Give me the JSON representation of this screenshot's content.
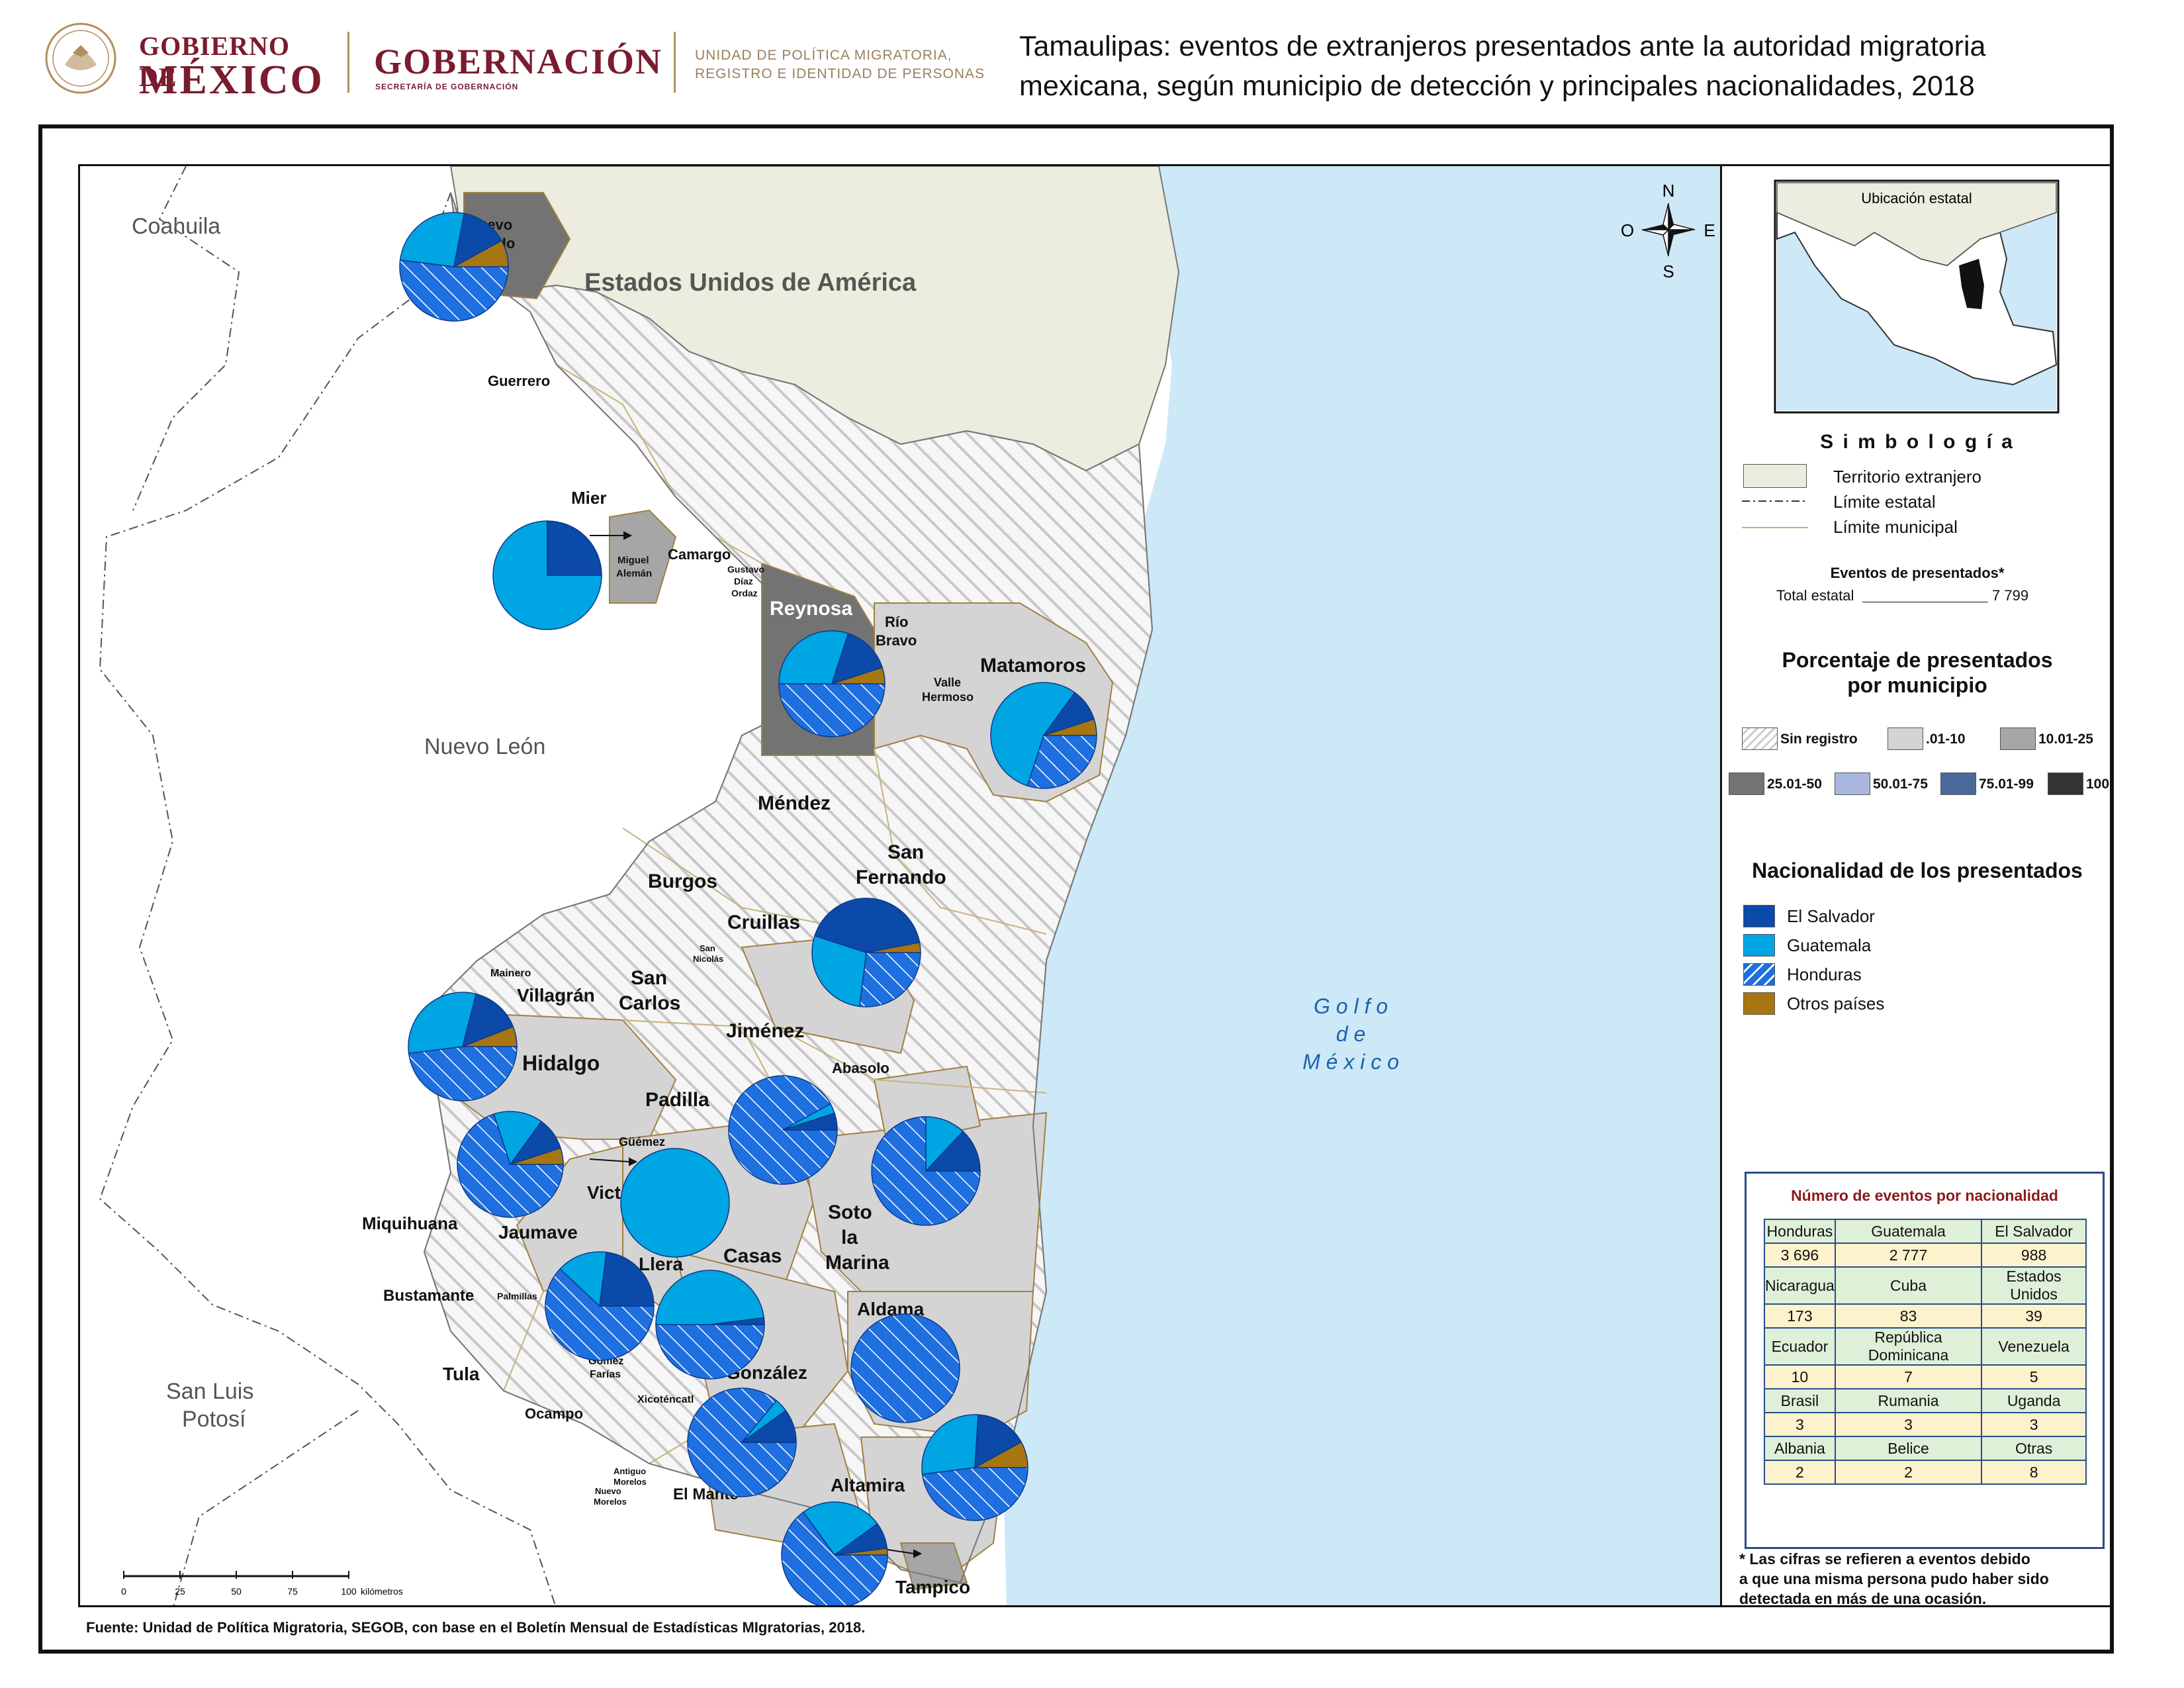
{
  "header": {
    "gob_line1": "GOBIERNO DE",
    "gob_line2": "MÉXICO",
    "gobernacion": "GOBERNACIÓN",
    "gobernacion_sub": "SECRETARÍA DE GOBERNACIÓN",
    "unit_line1": "UNIDAD DE POLÍTICA MIGRATORIA,",
    "unit_line2": "REGISTRO E IDENTIDAD DE PERSONAS",
    "title_line1": "Tamaulipas: eventos de extranjeros presentados ante la autoridad migratoria",
    "title_line2": "mexicana, según municipio de detección y principales nacionalidades, 2018"
  },
  "map": {
    "regions": {
      "coahuila": "Coahuila",
      "usa": "Estados Unidos de América",
      "nuevo_leon": "Nuevo León",
      "slp_1": "San Luis",
      "slp_2": "Potosí",
      "gulf_1": "G o l f o",
      "gulf_2": "d e",
      "gulf_3": "M é x i c o"
    },
    "municipalities": {
      "nuevo_laredo_1": "Nuevo",
      "nuevo_laredo_2": "Laredo",
      "guerrero": "Guerrero",
      "mier": "Mier",
      "miguel_aleman_1": "Miguel",
      "miguel_aleman_2": "Alemán",
      "camargo": "Camargo",
      "gustavo_1": "Gustavo",
      "gustavo_2": "Díaz",
      "gustavo_3": "Ordaz",
      "reynosa": "Reynosa",
      "rio_bravo_1": "Río",
      "rio_bravo_2": "Bravo",
      "valle_hermoso_1": "Valle",
      "valle_hermoso_2": "Hermoso",
      "matamoros": "Matamoros",
      "mendez": "Méndez",
      "san_fernando_1": "San",
      "san_fernando_2": "Fernando",
      "burgos": "Burgos",
      "cruillas": "Cruillas",
      "san_nicolas_1": "San",
      "san_nicolas_2": "Nicolás",
      "mainero": "Mainero",
      "villagran": "Villagrán",
      "san_carlos_1": "San",
      "san_carlos_2": "Carlos",
      "jimenez": "Jiménez",
      "abasolo": "Abasolo",
      "hidalgo": "Hidalgo",
      "padilla": "Padilla",
      "guemez": "Güémez",
      "victoria": "Victoria",
      "soto_la_marina_1": "Soto",
      "soto_la_marina_2": "la",
      "soto_la_marina_3": "Marina",
      "miquihuana": "Miquihuana",
      "jaumave": "Jaumave",
      "llera": "Llera",
      "casas": "Casas",
      "bustamante": "Bustamante",
      "palmillas": "Palmillas",
      "aldama": "Aldama",
      "tula": "Tula",
      "gomez_farias_1": "Gómez",
      "gomez_farias_2": "Farías",
      "xicotencatl": "Xicoténcatl",
      "gonzalez": "González",
      "ocampo": "Ocampo",
      "antiguo_morelos_1": "Antiguo",
      "antiguo_morelos_2": "Morelos",
      "nuevo_morelos_1": "Nuevo",
      "nuevo_morelos_2": "Morelos",
      "el_mante": "El Mante",
      "altamira": "Altamira",
      "tampico": "Tampico"
    },
    "compass": {
      "n": "N",
      "s": "S",
      "e": "E",
      "w": "O"
    },
    "scale": {
      "ticks": [
        "0",
        "25",
        "50",
        "75",
        "100"
      ],
      "unit": "kilómetros"
    }
  },
  "legend": {
    "inset_title": "Ubicación estatal",
    "symbology_title": "S i m b o l o g í a",
    "territorio": "Territorio extranjero",
    "limite_estatal": "Límite estatal",
    "limite_municipal": "Límite municipal",
    "events_title": "Eventos de presentados*",
    "total_label": "Total estatal",
    "total_value": "7 799",
    "pct_title_1": "Porcentaje de presentados",
    "pct_title_2": "por municipio",
    "classes": [
      {
        "label": "Sin registro",
        "color": "#ffffff"
      },
      {
        "label": ".01-10",
        "color": "#d4d4d4"
      },
      {
        "label": "10.01-25",
        "color": "#a6a6a6"
      },
      {
        "label": "25.01-50",
        "color": "#737373"
      },
      {
        "label": "50.01-75",
        "color": "#a9b7df"
      },
      {
        "label": "75.01-99",
        "color": "#4a6a9c"
      },
      {
        "label": "100",
        "color": "#333333"
      }
    ],
    "nat_title": "Nacionalidad de los presentados",
    "nationalities": [
      {
        "label": "El Salvador",
        "color": "#0b4aa8"
      },
      {
        "label": "Guatemala",
        "color": "#00a5e3"
      },
      {
        "label": "Honduras",
        "color": "#1e6fe0"
      },
      {
        "label": "Otros países",
        "color": "#a77512"
      }
    ]
  },
  "table": {
    "title": "Número de eventos por nacionalidad",
    "rows": [
      {
        "labels": [
          "Honduras",
          "Guatemala",
          "El Salvador"
        ],
        "values": [
          "3 696",
          "2 777",
          "988"
        ]
      },
      {
        "labels": [
          "Nicaragua",
          "Cuba",
          "Estados Unidos"
        ],
        "values": [
          "173",
          "83",
          "39"
        ]
      },
      {
        "labels": [
          "Ecuador",
          "República Dominicana",
          "Venezuela"
        ],
        "values": [
          "10",
          "7",
          "5"
        ]
      },
      {
        "labels": [
          "Brasil",
          "Rumania",
          "Uganda"
        ],
        "values": [
          "3",
          "3",
          "3"
        ]
      },
      {
        "labels": [
          "Albania",
          "Belice",
          "Otras"
        ],
        "values": [
          "2",
          "2",
          "8"
        ]
      }
    ]
  },
  "note": {
    "line1": "* Las cifras se refieren a eventos debido",
    "line2": "a que una misma persona pudo haber sido",
    "line3": "detectada en más de una ocasión."
  },
  "source": "Fuente: Unidad de Política Migratoria, SEGOB, con base en el Boletín Mensual de Estadísticas MIgratorias, 2018."
}
